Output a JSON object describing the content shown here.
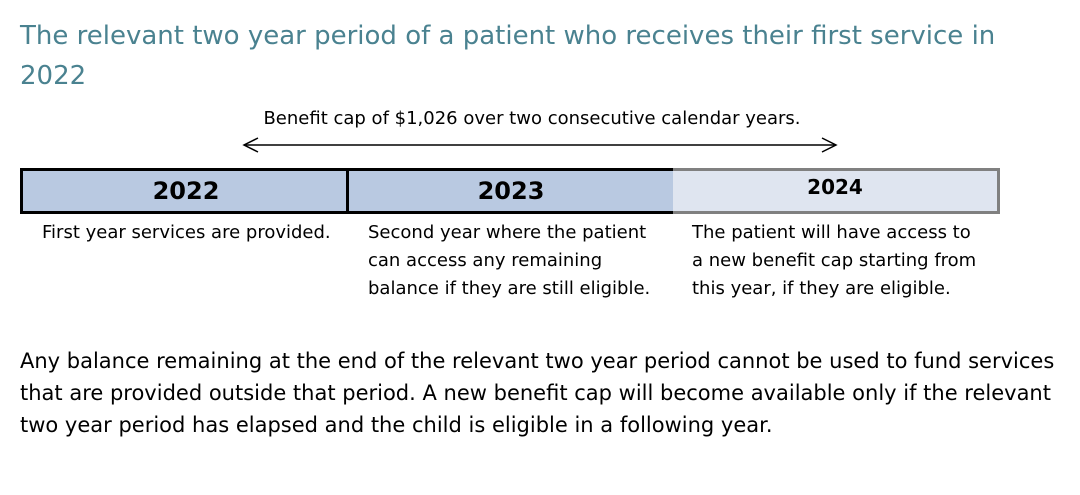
{
  "title": "The relevant two year period of a patient who receives their first service in 2022",
  "span": {
    "label": "Benefit cap of $1,026 over two consecutive calendar years."
  },
  "years": [
    {
      "label": "2022",
      "description": "First year services are provided."
    },
    {
      "label": "2023",
      "description": "Second year where the patient can access any remaining balance if they are still eligible."
    },
    {
      "label": "2024",
      "description": "The patient will have access to a new benefit cap starting from this year, if they are eligible."
    }
  ],
  "note": "Any balance remaining at the end of the relevant two year period cannot be used to fund services that are provided outside that period. A new benefit cap will become available only if the relevant two year period has elapsed and the child is eligible in a following year.",
  "colors": {
    "title": "#4a8290",
    "active_year_fill": "#b9c9e1",
    "future_year_fill": "#dfe5f0",
    "active_border": "#000000",
    "future_border": "#808080"
  }
}
